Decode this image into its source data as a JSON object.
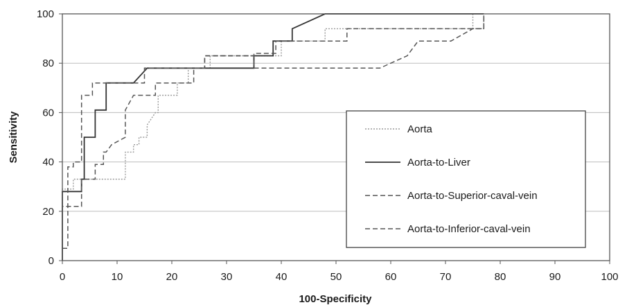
{
  "chart_data": {
    "type": "line",
    "title": "",
    "xlabel": "100-Specificity",
    "ylabel": "Sensitivity",
    "xlim": [
      0,
      100
    ],
    "ylim": [
      0,
      100
    ],
    "x_ticks": [
      0,
      10,
      20,
      30,
      40,
      50,
      60,
      70,
      80,
      90,
      100
    ],
    "y_ticks": [
      0,
      20,
      40,
      60,
      80,
      100
    ],
    "grid": "horizontal",
    "legend_position": "lower-right",
    "series": [
      {
        "name": "Aorta",
        "color": "#9a9a9a",
        "style": "dotted",
        "x": [
          0,
          0,
          2,
          2,
          11.5,
          11.5,
          13,
          13,
          14,
          14,
          15.5,
          15.5,
          17,
          17.5,
          17.5,
          21,
          21,
          23,
          23,
          27,
          27,
          40,
          40,
          48,
          48,
          75,
          75
        ],
        "y": [
          22,
          29,
          29,
          33,
          33,
          44,
          44,
          47,
          47,
          50,
          50,
          55,
          60,
          60,
          67,
          67,
          72,
          72,
          78,
          78,
          83,
          83,
          89,
          89,
          94,
          94,
          100
        ]
      },
      {
        "name": "Aorta-to-Liver",
        "color": "#333333",
        "style": "solid",
        "x": [
          0,
          0,
          3.5,
          3.5,
          4,
          4,
          6,
          6,
          8,
          8,
          13,
          15.5,
          35,
          35,
          38.5,
          38.5,
          42,
          42,
          48,
          77
        ],
        "y": [
          0,
          28,
          28,
          33,
          33,
          50,
          50,
          61,
          61,
          72,
          72,
          78,
          78,
          83,
          83,
          89,
          89,
          94,
          100,
          100
        ]
      },
      {
        "name": "Aorta-to-Superior-caval-vein",
        "color": "#555555",
        "style": "dashed",
        "x": [
          0,
          0,
          3.5,
          3.5,
          6,
          6,
          7.5,
          7.5,
          8,
          9,
          11.5,
          11.5,
          13,
          17,
          17,
          24,
          24,
          26,
          26,
          35,
          35,
          39,
          39,
          52,
          52,
          77,
          77
        ],
        "y": [
          5,
          22,
          22,
          33,
          33,
          39,
          39,
          44,
          44,
          47,
          50,
          61,
          67,
          67,
          72,
          72,
          78,
          78,
          83,
          83,
          84,
          84,
          89,
          89,
          94,
          94,
          100
        ]
      },
      {
        "name": "Aorta-to-Inferior-caval-vein",
        "color": "#555555",
        "style": "dashed",
        "x": [
          0,
          1,
          1,
          2,
          2,
          3.5,
          3.5,
          5.5,
          5.5,
          7.5,
          7.5,
          15,
          15,
          26,
          26,
          35,
          35,
          58,
          63,
          65,
          65,
          67,
          71,
          75,
          77,
          77
        ],
        "y": [
          5,
          5,
          38,
          38,
          40,
          40,
          67,
          67,
          72,
          72,
          72,
          72,
          78,
          78,
          83,
          83,
          78,
          78,
          83,
          89,
          89,
          89,
          89,
          94,
          94,
          100
        ]
      }
    ]
  }
}
